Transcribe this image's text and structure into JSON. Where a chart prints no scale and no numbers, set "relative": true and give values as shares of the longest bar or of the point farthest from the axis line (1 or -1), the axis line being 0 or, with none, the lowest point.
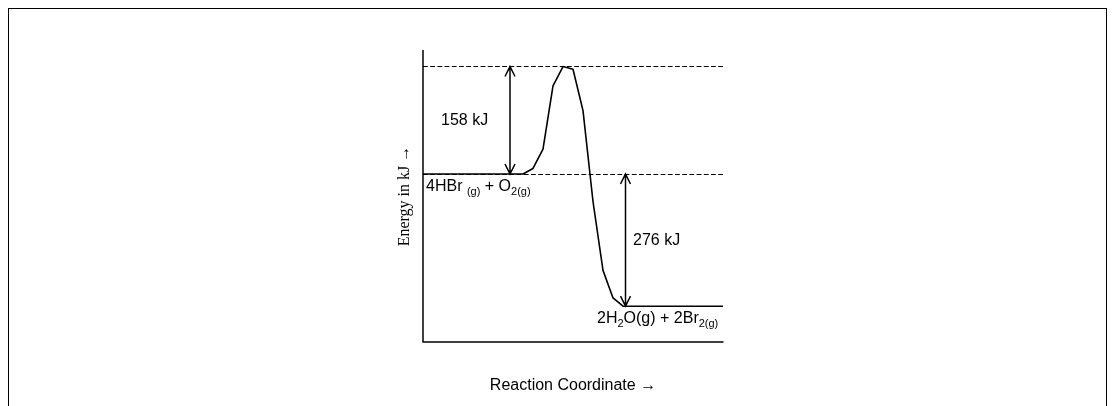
{
  "chart_data": {
    "type": "line",
    "relative": true,
    "xlabel": "Reaction Coordinate →",
    "ylabel": "Energy in kJ →",
    "categories": [
      null,
      null,
      null,
      null,
      null,
      null,
      null,
      null,
      null,
      null,
      null,
      null,
      null,
      null,
      null,
      null,
      null,
      null,
      null,
      null,
      null,
      null,
      null,
      null,
      null,
      null,
      null,
      null,
      null,
      null,
      null
    ],
    "series": [
      {
        "color": "#000000",
        "values": [
          0.61,
          0.61,
          0.61,
          0.61,
          0.61,
          0.61,
          0.61,
          0.61,
          0.61,
          0.61,
          0.61,
          0.63,
          0.7,
          0.93,
          1,
          0.99,
          0.84,
          0.51,
          0.26,
          0.16,
          0.13,
          0.13,
          0.13,
          0.13,
          0.13,
          0.13,
          0.13,
          0.13,
          0.13,
          0.13,
          0.13
        ]
      }
    ],
    "ref_lines": [
      {
        "axis": "y",
        "value": 1,
        "color": "#000000",
        "line_style": "dashed"
      },
      {
        "axis": "y",
        "value": 0.61,
        "color": "#000000",
        "line_style": "dashed"
      }
    ],
    "annotations": [
      "158 kJ",
      "276 kJ",
      {
        "text": "4HBr $_{(g)}$ + O$_{2(g)}$",
        "y": 0.61
      },
      {
        "text": "2H$_{2}$O(g) + 2Br$_{2(g)}$",
        "y": 0.13
      }
    ]
  }
}
